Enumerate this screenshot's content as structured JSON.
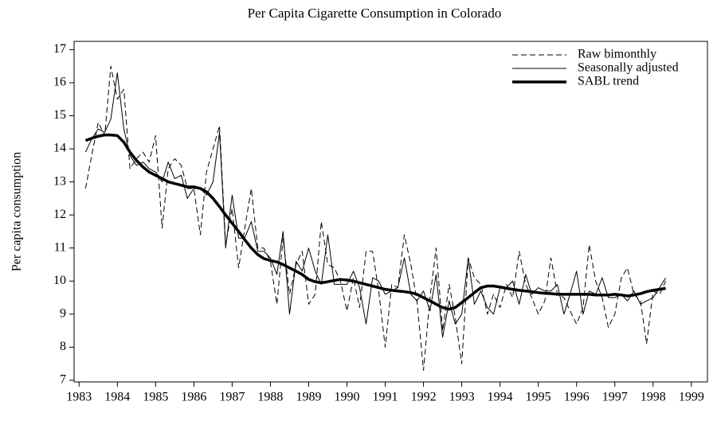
{
  "chart_data": {
    "type": "line",
    "title": "Per Capita Cigarette Consumption in Colorado",
    "y_label": "Per capita consumption",
    "x": [
      1983.17,
      1983.33,
      1983.5,
      1983.67,
      1983.83,
      1984,
      1984.17,
      1984.33,
      1984.5,
      1984.67,
      1984.83,
      1985,
      1985.17,
      1985.33,
      1985.5,
      1985.67,
      1985.83,
      1986,
      1986.17,
      1986.33,
      1986.5,
      1986.67,
      1986.83,
      1987,
      1987.17,
      1987.33,
      1987.5,
      1987.67,
      1987.83,
      1988,
      1988.17,
      1988.33,
      1988.5,
      1988.67,
      1988.83,
      1989,
      1989.17,
      1989.33,
      1989.5,
      1989.67,
      1989.83,
      1990,
      1990.17,
      1990.33,
      1990.5,
      1990.67,
      1990.83,
      1991,
      1991.17,
      1991.33,
      1991.5,
      1991.67,
      1991.83,
      1992,
      1992.17,
      1992.33,
      1992.5,
      1992.67,
      1992.83,
      1993,
      1993.17,
      1993.33,
      1993.5,
      1993.67,
      1993.83,
      1994,
      1994.17,
      1994.33,
      1994.5,
      1994.67,
      1994.83,
      1995,
      1995.17,
      1995.33,
      1995.5,
      1995.67,
      1995.83,
      1996,
      1996.17,
      1996.33,
      1996.5,
      1996.67,
      1996.83,
      1997,
      1997.17,
      1997.33,
      1997.5,
      1997.67,
      1997.83,
      1998,
      1998.17,
      1998.33
    ],
    "series": [
      {
        "name": "Raw bimonthly",
        "color": "#000000",
        "style": "dashed",
        "line_width": 1,
        "values": [
          12.8,
          13.8,
          14.8,
          14.4,
          16.5,
          15.5,
          15.8,
          13.4,
          13.7,
          13.9,
          13.6,
          14.4,
          11.6,
          13.4,
          13.7,
          13.5,
          12.8,
          12.8,
          11.4,
          13.3,
          14.0,
          14.7,
          11.1,
          12.2,
          10.4,
          11.6,
          12.8,
          11.0,
          11.0,
          10.6,
          9.3,
          11.3,
          9.6,
          10.5,
          10.9,
          9.3,
          9.6,
          11.8,
          10.5,
          10.4,
          10.0,
          9.1,
          10.1,
          9.2,
          10.9,
          10.9,
          9.7,
          8.0,
          9.9,
          9.8,
          11.4,
          10.5,
          9.4,
          7.3,
          9.5,
          11.0,
          8.5,
          9.9,
          8.9,
          7.5,
          10.7,
          10.1,
          9.9,
          9.0,
          9.6,
          9.2,
          9.9,
          9.5,
          10.9,
          9.9,
          9.5,
          9.0,
          9.4,
          10.7,
          9.6,
          9.5,
          9.1,
          8.7,
          9.2,
          11.1,
          10.0,
          9.5,
          8.6,
          9.0,
          10.1,
          10.4,
          9.6,
          9.4,
          8.1,
          9.7,
          9.6,
          10.0
        ]
      },
      {
        "name": "Seasonally adjusted",
        "color": "#000000",
        "style": "solid",
        "line_width": 1,
        "values": [
          13.9,
          14.3,
          14.6,
          14.5,
          14.9,
          16.3,
          14.6,
          13.8,
          13.5,
          13.6,
          13.4,
          13.3,
          13.0,
          13.6,
          13.1,
          13.2,
          12.5,
          12.8,
          12.8,
          12.6,
          13.0,
          14.5,
          11.0,
          12.6,
          11.3,
          11.3,
          11.8,
          10.9,
          10.9,
          10.7,
          10.2,
          11.5,
          9.0,
          10.6,
          10.3,
          11.0,
          10.3,
          9.9,
          11.4,
          9.9,
          9.9,
          9.9,
          10.3,
          9.8,
          8.7,
          10.1,
          10.0,
          9.6,
          9.7,
          9.8,
          10.7,
          9.6,
          9.4,
          9.7,
          9.1,
          10.2,
          8.3,
          9.4,
          8.7,
          9.0,
          10.7,
          9.3,
          9.7,
          9.2,
          9.0,
          9.8,
          9.8,
          10.0,
          9.3,
          10.2,
          9.6,
          9.8,
          9.7,
          9.7,
          9.9,
          9.0,
          9.6,
          10.3,
          9.0,
          9.7,
          9.6,
          10.1,
          9.5,
          9.5,
          9.6,
          9.4,
          9.7,
          9.3,
          9.4,
          9.5,
          9.8,
          10.1
        ]
      },
      {
        "name": "SABL trend",
        "color": "#000000",
        "style": "solid",
        "line_width": 3.5,
        "values": [
          14.25,
          14.32,
          14.38,
          14.42,
          14.42,
          14.4,
          14.2,
          13.9,
          13.65,
          13.45,
          13.3,
          13.2,
          13.1,
          13.0,
          12.95,
          12.9,
          12.85,
          12.85,
          12.8,
          12.7,
          12.5,
          12.25,
          12.0,
          11.75,
          11.5,
          11.25,
          11.0,
          10.8,
          10.68,
          10.62,
          10.58,
          10.5,
          10.4,
          10.3,
          10.2,
          10.05,
          9.98,
          9.95,
          9.98,
          10.02,
          10.05,
          10.03,
          10.0,
          9.95,
          9.9,
          9.85,
          9.8,
          9.75,
          9.72,
          9.7,
          9.68,
          9.65,
          9.6,
          9.5,
          9.4,
          9.3,
          9.2,
          9.15,
          9.2,
          9.35,
          9.5,
          9.65,
          9.8,
          9.85,
          9.85,
          9.82,
          9.78,
          9.75,
          9.72,
          9.7,
          9.68,
          9.65,
          9.63,
          9.62,
          9.6,
          9.6,
          9.6,
          9.6,
          9.6,
          9.6,
          9.58,
          9.58,
          9.58,
          9.6,
          9.58,
          9.55,
          9.58,
          9.62,
          9.68,
          9.72,
          9.75,
          9.78
        ]
      }
    ],
    "xlim": [
      1982.87,
      1999.42
    ],
    "ylim": [
      6.95,
      17.25
    ],
    "xticks": [
      1983,
      1984,
      1985,
      1986,
      1987,
      1988,
      1989,
      1990,
      1991,
      1992,
      1993,
      1994,
      1995,
      1996,
      1997,
      1998,
      1999
    ],
    "yticks": [
      7,
      8,
      9,
      10,
      11,
      12,
      13,
      14,
      15,
      16,
      17
    ],
    "legend": "upper right",
    "grid": false
  }
}
